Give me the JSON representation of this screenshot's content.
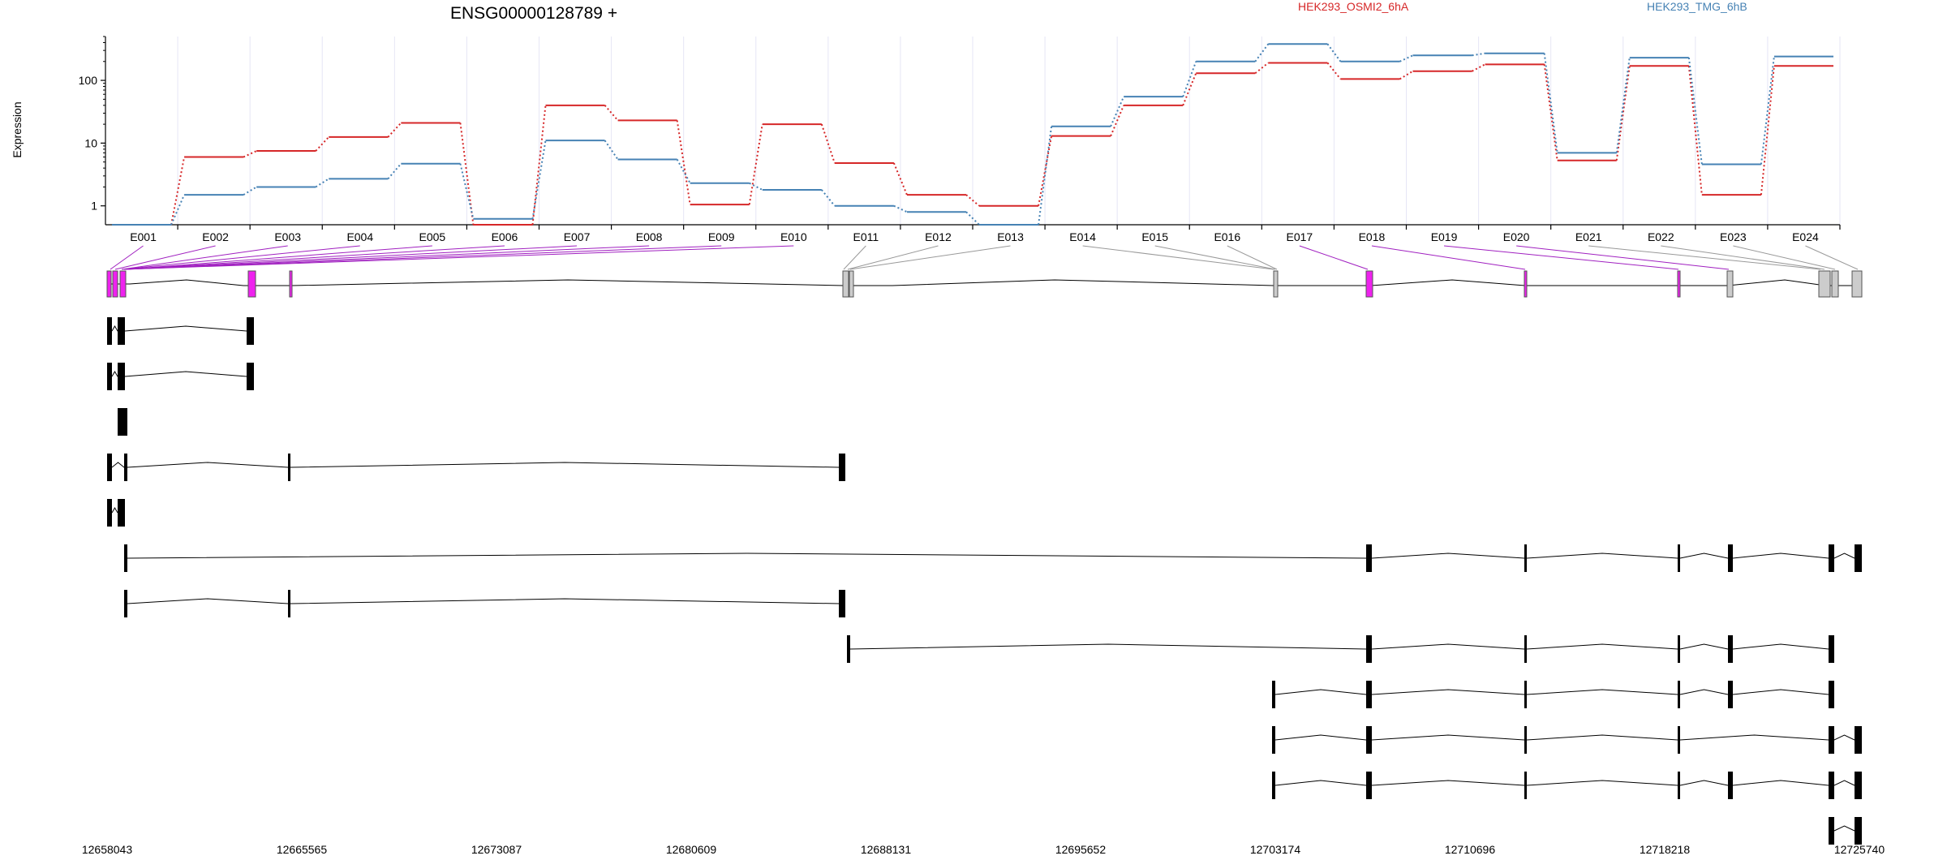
{
  "chart_data": {
    "type": "line",
    "title": "ENSG00000128789 +",
    "ylabel": "Expression",
    "yscale": "log",
    "ylim": [
      0.5,
      500
    ],
    "yticks": [
      1,
      10,
      100
    ],
    "grid": true,
    "legend_position": "top-right",
    "categories": [
      "E001",
      "E002",
      "E003",
      "E004",
      "E005",
      "E006",
      "E007",
      "E008",
      "E009",
      "E010",
      "E011",
      "E012",
      "E013",
      "E014",
      "E015",
      "E016",
      "E017",
      "E018",
      "E019",
      "E020",
      "E021",
      "E022",
      "E023",
      "E024"
    ],
    "series": [
      {
        "name": "HEK293_OSMI2_6hA",
        "color": "#d62728",
        "values": [
          0.5,
          6,
          7.5,
          12.5,
          21,
          0.5,
          40,
          23,
          1.05,
          20,
          4.8,
          1.5,
          1.0,
          13,
          40,
          130,
          190,
          105,
          140,
          180,
          5.3,
          170,
          1.5,
          170
        ]
      },
      {
        "name": "HEK293_TMG_6hB",
        "color": "#4682b4",
        "values": [
          0.5,
          1.5,
          2.0,
          2.7,
          4.7,
          0.62,
          11,
          5.5,
          2.3,
          1.8,
          1.0,
          0.8,
          0.5,
          18.5,
          55,
          200,
          380,
          200,
          250,
          270,
          7,
          230,
          4.6,
          240
        ]
      }
    ],
    "genomic_ticks": [
      "12658043",
      "12665565",
      "12673087",
      "12680609",
      "12688131",
      "12695652",
      "12703174",
      "12710696",
      "12718218",
      "12725740"
    ],
    "exon_colors": {
      "significant": "#ee22ee",
      "nonsignificant": "#cccccc",
      "transcript": "#000000"
    },
    "exon_significant": [
      true,
      true,
      true,
      true,
      true,
      true,
      true,
      true,
      true,
      true,
      false,
      false,
      false,
      false,
      false,
      false,
      true,
      true,
      true,
      true,
      false,
      false,
      false,
      false
    ],
    "transcripts": [
      [
        1,
        2,
        5
      ],
      [
        1,
        2,
        5
      ],
      [
        2,
        3
      ],
      [
        1,
        3,
        6,
        11
      ],
      [
        1,
        2
      ],
      [
        3,
        18,
        19,
        20,
        21,
        22,
        23
      ],
      [
        3,
        6,
        11
      ],
      [
        13,
        18,
        19,
        20,
        21,
        22
      ],
      [
        16,
        18,
        19,
        20,
        21,
        22
      ],
      [
        16,
        18,
        19,
        20,
        22,
        23
      ],
      [
        16,
        18,
        19,
        20,
        21,
        22,
        23
      ],
      [
        22,
        23
      ]
    ]
  }
}
